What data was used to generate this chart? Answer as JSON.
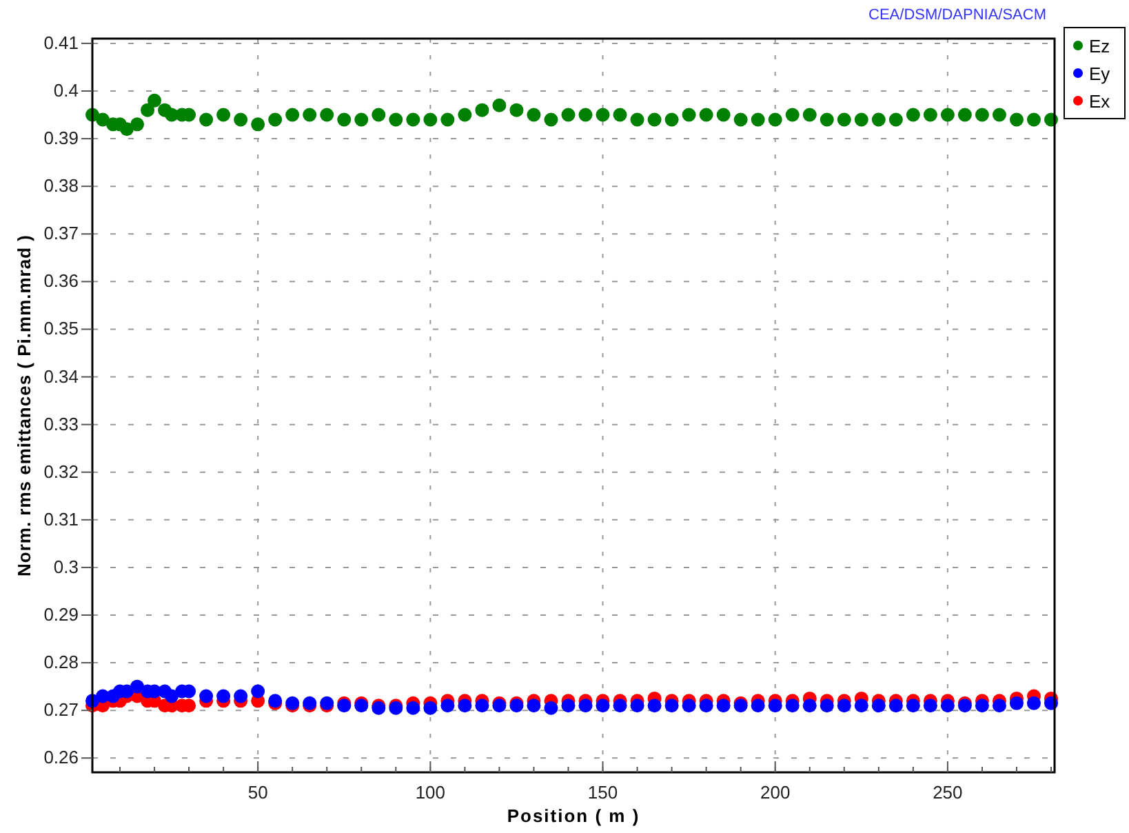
{
  "chart_data": {
    "type": "scatter",
    "title": "CEA/DSM/DAPNIA/SACM",
    "xlabel": "Position ( m )",
    "ylabel": "Norm. rms emittances ( Pi.mm.mrad )",
    "xlim": [
      2,
      281
    ],
    "ylim": [
      0.257,
      0.411
    ],
    "xticks": [
      {
        "value": 10,
        "label": null
      },
      {
        "value": 20,
        "label": null
      },
      {
        "value": 30,
        "label": null
      },
      {
        "value": 40,
        "label": null
      },
      50,
      {
        "value": 60,
        "label": null
      },
      {
        "value": 70,
        "label": null
      },
      {
        "value": 80,
        "label": null
      },
      {
        "value": 90,
        "label": null
      },
      100,
      {
        "value": 110,
        "label": null
      },
      {
        "value": 120,
        "label": null
      },
      {
        "value": 130,
        "label": null
      },
      {
        "value": 140,
        "label": null
      },
      150,
      {
        "value": 160,
        "label": null
      },
      {
        "value": 170,
        "label": null
      },
      {
        "value": 180,
        "label": null
      },
      {
        "value": 190,
        "label": null
      },
      200,
      {
        "value": 210,
        "label": null
      },
      {
        "value": 220,
        "label": null
      },
      {
        "value": 230,
        "label": null
      },
      {
        "value": 240,
        "label": null
      },
      250,
      {
        "value": 260,
        "label": null
      },
      {
        "value": 270,
        "label": null
      },
      {
        "value": 280,
        "label": null
      }
    ],
    "yticks": [
      0.26,
      0.27,
      0.28,
      0.29,
      0.3,
      0.31,
      0.32,
      0.33,
      0.34,
      0.35,
      0.36,
      0.37,
      0.38,
      0.39,
      0.4,
      0.41
    ],
    "grid": true,
    "legend": "top right",
    "marker": "circle",
    "x": [
      2,
      5,
      8,
      10,
      12,
      15,
      18,
      20,
      23,
      25,
      28,
      30,
      35,
      40,
      45,
      50,
      55,
      60,
      65,
      70,
      75,
      80,
      85,
      90,
      95,
      100,
      105,
      110,
      115,
      120,
      125,
      130,
      135,
      140,
      145,
      150,
      155,
      160,
      165,
      170,
      175,
      180,
      185,
      190,
      195,
      200,
      205,
      210,
      215,
      220,
      225,
      230,
      235,
      240,
      245,
      250,
      255,
      260,
      265,
      270,
      275,
      280
    ],
    "series": [
      {
        "name": "Ez",
        "color": "#008000",
        "values": [
          0.395,
          0.394,
          0.393,
          0.393,
          0.392,
          0.393,
          0.396,
          0.398,
          0.396,
          0.395,
          0.395,
          0.395,
          0.394,
          0.395,
          0.394,
          0.393,
          0.394,
          0.395,
          0.395,
          0.395,
          0.394,
          0.394,
          0.395,
          0.394,
          0.394,
          0.394,
          0.394,
          0.395,
          0.396,
          0.397,
          0.396,
          0.395,
          0.394,
          0.395,
          0.395,
          0.395,
          0.395,
          0.394,
          0.394,
          0.394,
          0.395,
          0.395,
          0.395,
          0.394,
          0.394,
          0.394,
          0.395,
          0.395,
          0.394,
          0.394,
          0.394,
          0.394,
          0.394,
          0.395,
          0.395,
          0.395,
          0.395,
          0.395,
          0.395,
          0.394,
          0.394,
          0.394
        ]
      },
      {
        "name": "Ey",
        "color": "#0000ff",
        "values": [
          0.272,
          0.273,
          0.273,
          0.274,
          0.274,
          0.275,
          0.274,
          0.274,
          0.274,
          0.273,
          0.274,
          0.274,
          0.273,
          0.273,
          0.273,
          0.274,
          0.272,
          0.2715,
          0.2715,
          0.2715,
          0.271,
          0.271,
          0.2705,
          0.2705,
          0.2705,
          0.2705,
          0.271,
          0.271,
          0.271,
          0.271,
          0.271,
          0.271,
          0.2705,
          0.271,
          0.271,
          0.271,
          0.271,
          0.271,
          0.271,
          0.271,
          0.271,
          0.271,
          0.271,
          0.271,
          0.271,
          0.271,
          0.271,
          0.271,
          0.271,
          0.271,
          0.271,
          0.271,
          0.271,
          0.271,
          0.271,
          0.271,
          0.271,
          0.271,
          0.271,
          0.2715,
          0.2715,
          0.2715
        ]
      },
      {
        "name": "Ex",
        "color": "#ff0000",
        "values": [
          0.271,
          0.271,
          0.272,
          0.272,
          0.273,
          0.273,
          0.272,
          0.272,
          0.271,
          0.271,
          0.271,
          0.271,
          0.272,
          0.272,
          0.272,
          0.272,
          0.2715,
          0.271,
          0.271,
          0.271,
          0.2715,
          0.2715,
          0.271,
          0.271,
          0.2715,
          0.2715,
          0.272,
          0.272,
          0.272,
          0.2715,
          0.2715,
          0.272,
          0.272,
          0.272,
          0.272,
          0.272,
          0.272,
          0.272,
          0.2725,
          0.272,
          0.272,
          0.272,
          0.272,
          0.2715,
          0.272,
          0.272,
          0.272,
          0.2725,
          0.272,
          0.272,
          0.2725,
          0.272,
          0.272,
          0.272,
          0.272,
          0.272,
          0.2715,
          0.272,
          0.272,
          0.2725,
          0.273,
          0.2725
        ]
      }
    ]
  }
}
